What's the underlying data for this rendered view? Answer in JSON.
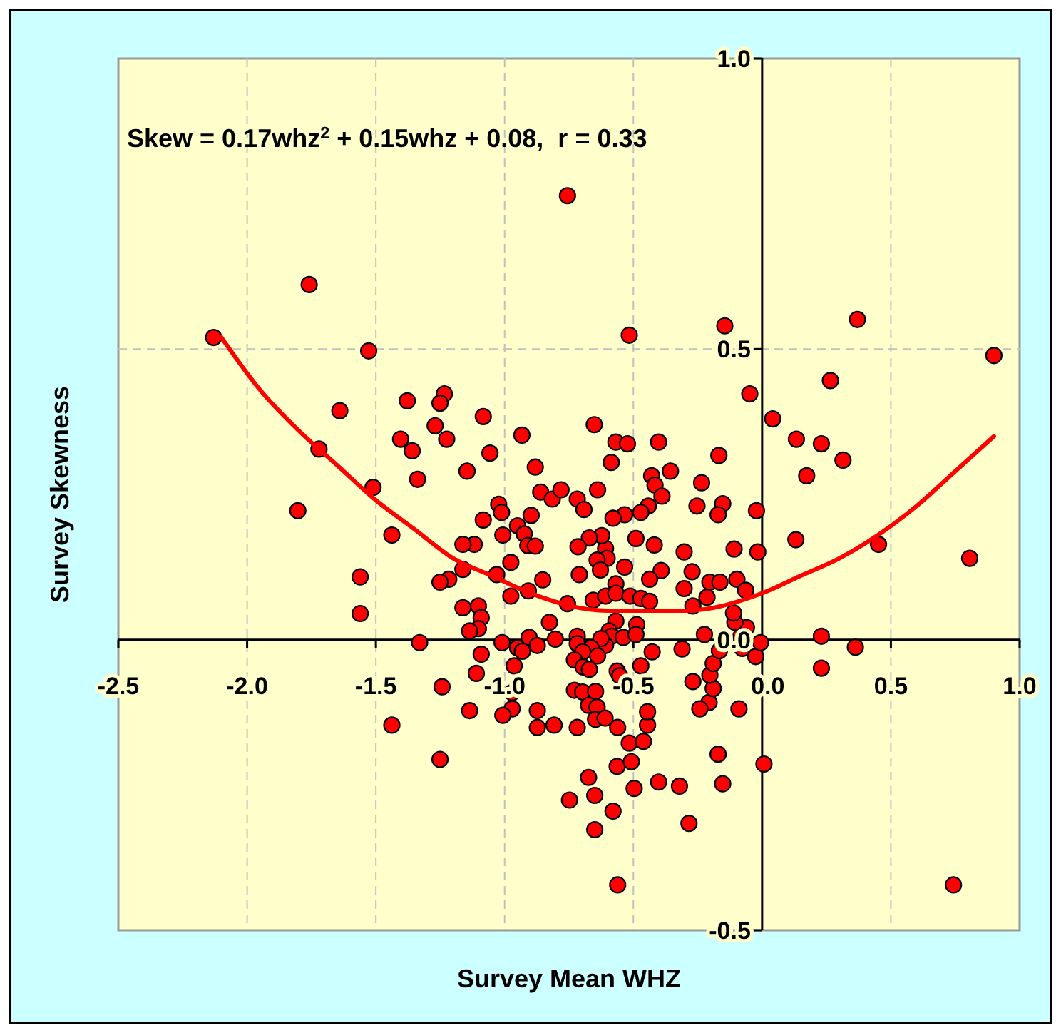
{
  "chart_data": {
    "type": "scatter",
    "xlabel": "Survey Mean WHZ",
    "ylabel": "Survey Skewness",
    "annotations": [
      "Skew = 0.17whz$^{2}$ + 0.15whz + 0.08,  r = 0.33"
    ],
    "xlim": [
      -2.5,
      1.0
    ],
    "xticks": [
      {
        "value": -2.5,
        "label": "-2.5"
      },
      {
        "value": -2.0,
        "label": "-2.0"
      },
      {
        "value": -1.5,
        "label": "-1.5"
      },
      {
        "value": -1.0,
        "label": "-1.0"
      },
      {
        "value": -0.5,
        "label": "-0.5"
      },
      {
        "value": 0,
        "label": "0.0"
      },
      {
        "value": 0.5,
        "label": "0.5"
      },
      {
        "value": 1.0,
        "label": "1.0"
      }
    ],
    "ylim": [
      -0.5,
      1.0
    ],
    "yticks": [
      {
        "value": -0.5,
        "label": "-0.5"
      },
      {
        "value": 0,
        "label": "0.0"
      },
      {
        "value": 0.5,
        "label": "0.5"
      },
      {
        "value": 1.0,
        "label": "1.0"
      }
    ],
    "grid": true,
    "marker": "circle",
    "series": [
      {
        "color": "#ff0000",
        "x": [
          -0.756,
          -1.759,
          -2.13,
          -1.528,
          -0.516,
          -0.145,
          0.37,
          0.9,
          0.265,
          -0.048,
          0.041,
          0.133,
          0.23,
          0.314,
          0.173,
          0.131,
          0.452,
          0.806,
          0.23,
          0.362,
          0.23,
          0.007,
          0.743,
          -0.561,
          -1.64,
          -1.721,
          -1.803,
          -1.511,
          -1.438,
          -1.561,
          -1.561,
          -1.33,
          -1.438,
          -1.251,
          -1.243,
          -1.378,
          -1.234,
          -1.251,
          -1.27,
          -1.404,
          -1.359,
          -1.225,
          -1.338,
          -1.083,
          -1.146,
          -1.057,
          -0.933,
          -0.881,
          -1.023,
          -1.012,
          -1.083,
          -1.007,
          -0.95,
          -0.924,
          -0.897,
          -0.91,
          -0.881,
          -0.86,
          -0.815,
          -0.781,
          -0.718,
          -0.692,
          -0.652,
          -0.639,
          -0.586,
          -0.568,
          -0.523,
          -0.402,
          -0.356,
          -0.429,
          -0.416,
          -0.389,
          -0.442,
          -0.471,
          -0.534,
          -0.579,
          -0.49,
          -0.419,
          -0.392,
          -0.437,
          -0.534,
          -0.568,
          -0.608,
          -0.602,
          -0.623,
          -0.671,
          -0.715,
          -0.641,
          -0.628,
          -0.71,
          -0.756,
          -0.656,
          -0.608,
          -0.568,
          -0.513,
          -0.471,
          -0.437,
          -0.568,
          -0.594,
          -0.584,
          -0.539,
          -0.487,
          -0.49,
          -0.427,
          -0.471,
          -0.563,
          -0.553,
          -0.608,
          -0.626,
          -0.665,
          -0.718,
          -0.718,
          -0.697,
          -0.729,
          -0.639,
          -0.695,
          -0.671,
          -0.729,
          -0.697,
          -0.647,
          -0.674,
          -0.641,
          -0.647,
          -0.61,
          -0.718,
          -0.561,
          -0.516,
          -0.461,
          -0.445,
          -0.445,
          -0.563,
          -0.508,
          -0.674,
          -0.748,
          -0.65,
          -0.579,
          -0.497,
          -0.65,
          -0.402,
          -0.321,
          -0.284,
          -0.171,
          -0.153,
          -0.09,
          -0.206,
          -0.242,
          -0.19,
          -0.203,
          -0.269,
          -0.19,
          -0.311,
          -0.166,
          -0.224,
          -0.082,
          -0.077,
          -0.025,
          -0.006,
          -0.061,
          -0.106,
          -0.111,
          -0.203,
          -0.164,
          -0.098,
          -0.064,
          -0.214,
          -0.269,
          -0.303,
          -0.272,
          -0.303,
          -0.109,
          -0.017,
          -0.022,
          -0.153,
          -0.253,
          -0.235,
          -0.171,
          -0.168,
          -1.118,
          -1.162,
          -1.162,
          -1.217,
          -1.251,
          -1.162,
          -1.102,
          -1.091,
          -1.102,
          -1.136,
          -1.031,
          -0.976,
          -0.976,
          -0.908,
          -0.852,
          -0.826,
          -0.803,
          -1.01,
          -0.95,
          -0.905,
          -0.931,
          -0.873,
          -1.091,
          -0.963,
          -1.11,
          -0.971,
          -0.971,
          -1.007,
          -1.136,
          -0.873,
          -0.873,
          -0.808
        ],
        "values": [
          0.764,
          0.611,
          0.52,
          0.497,
          0.524,
          0.54,
          0.551,
          0.489,
          0.446,
          0.423,
          0.38,
          0.345,
          0.337,
          0.309,
          0.282,
          0.172,
          0.164,
          0.14,
          0.006,
          -0.013,
          -0.049,
          -0.214,
          -0.422,
          -0.422,
          0.394,
          0.328,
          0.222,
          0.262,
          0.18,
          0.108,
          0.045,
          -0.005,
          -0.147,
          -0.206,
          -0.081,
          0.411,
          0.423,
          0.407,
          0.368,
          0.345,
          0.325,
          0.345,
          0.276,
          0.384,
          0.29,
          0.321,
          0.352,
          0.297,
          0.233,
          0.219,
          0.206,
          0.18,
          0.196,
          0.182,
          0.214,
          0.162,
          0.161,
          0.254,
          0.242,
          0.258,
          0.242,
          0.224,
          0.37,
          0.258,
          0.305,
          0.34,
          0.337,
          0.34,
          0.29,
          0.282,
          0.266,
          0.247,
          0.23,
          0.219,
          0.215,
          0.209,
          0.174,
          0.163,
          0.119,
          0.104,
          0.125,
          0.096,
          0.157,
          0.14,
          0.179,
          0.175,
          0.16,
          0.137,
          0.12,
          0.112,
          0.062,
          0.068,
          0.075,
          0.08,
          0.075,
          0.071,
          0.066,
          0.032,
          0.015,
          0.006,
          0.004,
          0.026,
          0.009,
          -0.021,
          -0.045,
          -0.054,
          -0.062,
          -0.01,
          0.002,
          -0.014,
          0.006,
          -0.007,
          -0.021,
          -0.035,
          -0.028,
          -0.047,
          -0.051,
          -0.087,
          -0.09,
          -0.089,
          -0.113,
          -0.116,
          -0.137,
          -0.135,
          -0.151,
          -0.151,
          -0.178,
          -0.175,
          -0.147,
          -0.124,
          -0.218,
          -0.21,
          -0.237,
          -0.276,
          -0.268,
          -0.295,
          -0.256,
          -0.327,
          -0.245,
          -0.252,
          -0.316,
          -0.197,
          -0.248,
          -0.119,
          -0.108,
          -0.119,
          -0.084,
          -0.061,
          -0.072,
          -0.041,
          -0.016,
          -0.019,
          0.009,
          0.006,
          -0.015,
          -0.029,
          -0.005,
          0.021,
          0.03,
          0.046,
          0.099,
          0.099,
          0.104,
          0.085,
          0.073,
          0.058,
          0.088,
          0.117,
          0.151,
          0.156,
          0.151,
          0.222,
          0.234,
          0.23,
          0.27,
          0.215,
          0.317,
          0.164,
          0.164,
          0.121,
          0.104,
          0.099,
          0.055,
          0.058,
          0.038,
          0.019,
          0.015,
          0.112,
          0.133,
          0.075,
          0.084,
          0.103,
          0.03,
          0.001,
          -0.005,
          -0.014,
          0.004,
          -0.02,
          -0.01,
          -0.025,
          -0.045,
          -0.058,
          -0.091,
          -0.119,
          -0.13,
          -0.122,
          -0.122,
          -0.151,
          -0.147
        ]
      },
      {
        "type": "line",
        "marker": "none",
        "color": "#ff0000",
        "x": [
          -2.1,
          -1.95,
          -1.8,
          -1.65,
          -1.5,
          -1.35,
          -1.2,
          -1.05,
          -0.9,
          -0.6,
          -0.45,
          -0.3,
          0,
          0.15,
          0.3,
          0.45,
          0.6,
          0.75,
          0.9
        ],
        "values": [
          0.52,
          0.43,
          0.36,
          0.3,
          0.24,
          0.19,
          0.14,
          0.11,
          0.08,
          0.05,
          0.05,
          0.05,
          0.08,
          0.11,
          0.14,
          0.18,
          0.23,
          0.29,
          0.35
        ]
      }
    ]
  }
}
